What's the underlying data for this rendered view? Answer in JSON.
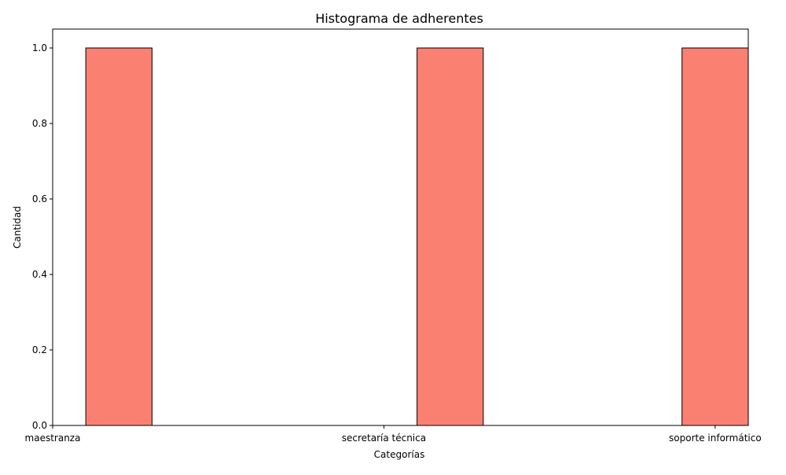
{
  "chart_data": {
    "type": "bar",
    "title": "Histograma de adherentes",
    "xlabel": "Categorías",
    "ylabel": "Cantidad",
    "categories": [
      "maestranza",
      "secretaría técnica",
      "soporte informático"
    ],
    "category_positions": [
      0,
      1,
      2
    ],
    "bins": [
      {
        "x0": 0.1,
        "x1": 0.3,
        "value": 1
      },
      {
        "x0": 1.1,
        "x1": 1.3,
        "value": 1
      },
      {
        "x0": 1.9,
        "x1": 2.1,
        "value": 1
      }
    ],
    "xlim": [
      0,
      2.1
    ],
    "ylim": [
      0,
      1.05
    ],
    "yticks": [
      0.0,
      0.2,
      0.4,
      0.6,
      0.8,
      1.0
    ],
    "ytick_labels": [
      "0.0",
      "0.2",
      "0.4",
      "0.6",
      "0.8",
      "1.0"
    ],
    "colors": {
      "bar_fill": "#fa8072",
      "bar_edge": "#000000",
      "axes": "#000000"
    },
    "grid": false
  }
}
